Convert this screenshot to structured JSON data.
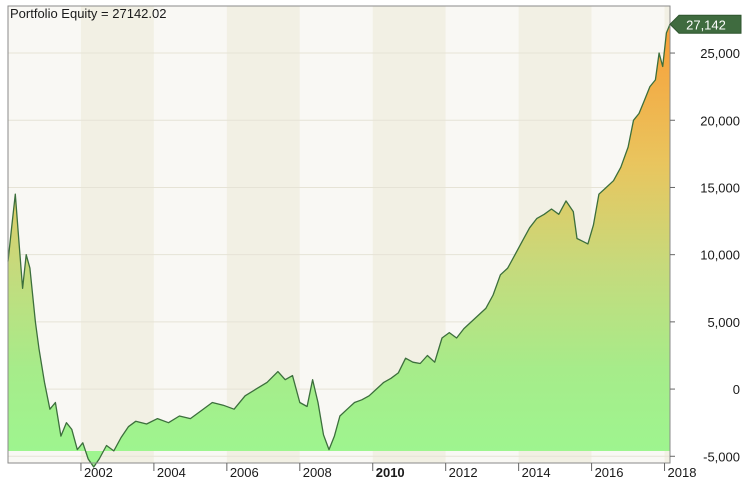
{
  "chart_data": {
    "type": "area",
    "title": "Portfolio Equity = 27142.02",
    "series_name": "Portfolio Equity",
    "last_value": 27142.02,
    "last_value_label": "27,142",
    "y_axis": {
      "position": "right",
      "ylim": [
        -5500,
        28500
      ],
      "ticks": [
        {
          "value": 25000,
          "label": "25,000"
        },
        {
          "value": 20000,
          "label": "20,000"
        },
        {
          "value": 15000,
          "label": "15,000"
        },
        {
          "value": 10000,
          "label": "10,000"
        },
        {
          "value": 5000,
          "label": "5,000"
        },
        {
          "value": 0,
          "label": "0"
        },
        {
          "value": -5000,
          "label": "-5,000"
        }
      ]
    },
    "x_axis": {
      "xlim": [
        2000.0,
        2018.15
      ],
      "ticks": [
        {
          "value": 2002,
          "label": "2002",
          "bold": false
        },
        {
          "value": 2004,
          "label": "2004",
          "bold": false
        },
        {
          "value": 2006,
          "label": "2006",
          "bold": false
        },
        {
          "value": 2008,
          "label": "2008",
          "bold": false
        },
        {
          "value": 2010,
          "label": "2010",
          "bold": true
        },
        {
          "value": 2012,
          "label": "2012",
          "bold": false
        },
        {
          "value": 2014,
          "label": "2014",
          "bold": false
        },
        {
          "value": 2016,
          "label": "2016",
          "bold": false
        },
        {
          "value": 2018,
          "label": "2018",
          "bold": false
        }
      ]
    },
    "x": [
      2000.0,
      2000.1,
      2000.2,
      2000.3,
      2000.4,
      2000.5,
      2000.6,
      2000.75,
      2000.85,
      2001.0,
      2001.15,
      2001.3,
      2001.45,
      2001.6,
      2001.75,
      2001.9,
      2002.05,
      2002.2,
      2002.35,
      2002.5,
      2002.7,
      2002.9,
      2003.1,
      2003.3,
      2003.5,
      2003.8,
      2004.1,
      2004.4,
      2004.7,
      2005.0,
      2005.3,
      2005.6,
      2005.9,
      2006.2,
      2006.5,
      2006.8,
      2007.1,
      2007.4,
      2007.6,
      2007.8,
      2008.0,
      2008.2,
      2008.35,
      2008.5,
      2008.65,
      2008.8,
      2008.95,
      2009.1,
      2009.3,
      2009.5,
      2009.7,
      2009.9,
      2010.1,
      2010.3,
      2010.5,
      2010.7,
      2010.9,
      2011.1,
      2011.3,
      2011.5,
      2011.7,
      2011.9,
      2012.1,
      2012.3,
      2012.5,
      2012.7,
      2012.9,
      2013.1,
      2013.3,
      2013.5,
      2013.7,
      2013.9,
      2014.1,
      2014.3,
      2014.5,
      2014.7,
      2014.9,
      2015.1,
      2015.3,
      2015.5,
      2015.6,
      2015.75,
      2015.9,
      2016.05,
      2016.2,
      2016.4,
      2016.6,
      2016.8,
      2017.0,
      2017.15,
      2017.3,
      2017.45,
      2017.6,
      2017.75,
      2017.85,
      2017.95,
      2018.05,
      2018.15
    ],
    "y": [
      9500,
      12000,
      14500,
      11000,
      7500,
      10000,
      9000,
      5000,
      3000,
      500,
      -1500,
      -1000,
      -3500,
      -2500,
      -3000,
      -4500,
      -4000,
      -5200,
      -5800,
      -5200,
      -4200,
      -4600,
      -3600,
      -2800,
      -2400,
      -2600,
      -2200,
      -2500,
      -2000,
      -2200,
      -1600,
      -1000,
      -1200,
      -1500,
      -500,
      0,
      500,
      1300,
      700,
      1000,
      -1000,
      -1300,
      700,
      -1000,
      -3400,
      -4500,
      -3500,
      -2000,
      -1500,
      -1000,
      -800,
      -500,
      0,
      500,
      800,
      1200,
      2300,
      2000,
      1900,
      2500,
      2000,
      3800,
      4200,
      3800,
      4500,
      5000,
      5500,
      6000,
      7000,
      8500,
      9000,
      10000,
      11000,
      12000,
      12700,
      13000,
      13400,
      13000,
      14000,
      13200,
      11200,
      11000,
      10800,
      12200,
      14500,
      15000,
      15500,
      16500,
      18000,
      20000,
      20500,
      21500,
      22500,
      23000,
      25000,
      24000,
      26500,
      27142
    ]
  }
}
